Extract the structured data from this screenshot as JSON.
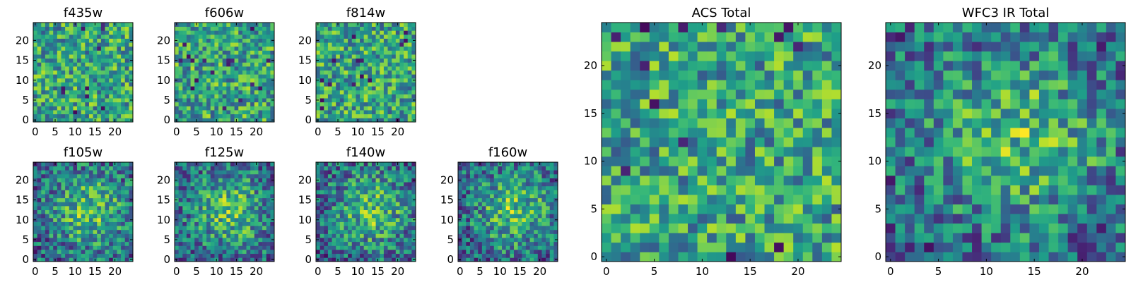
{
  "figure": {
    "colormap": "viridis",
    "colors": {
      "frame": "#000000",
      "background": "#ffffff"
    }
  },
  "chart_data": [
    {
      "type": "heatmap",
      "id": "f435w",
      "title": "f435w",
      "size": 25,
      "xlim": [
        -0.5,
        24.5
      ],
      "ylim": [
        -0.5,
        24.5
      ],
      "xticks": [
        0,
        5,
        10,
        15,
        20
      ],
      "yticks": [
        0,
        5,
        10,
        15,
        20
      ],
      "style": "uniform",
      "seed": 11,
      "grid": false
    },
    {
      "type": "heatmap",
      "id": "f606w",
      "title": "f606w",
      "size": 25,
      "xlim": [
        -0.5,
        24.5
      ],
      "ylim": [
        -0.5,
        24.5
      ],
      "xticks": [
        0,
        5,
        10,
        15,
        20
      ],
      "yticks": [
        0,
        5,
        10,
        15,
        20
      ],
      "style": "uniform",
      "seed": 23,
      "grid": false
    },
    {
      "type": "heatmap",
      "id": "f814w",
      "title": "f814w",
      "size": 25,
      "xlim": [
        -0.5,
        24.5
      ],
      "ylim": [
        -0.5,
        24.5
      ],
      "xticks": [
        0,
        5,
        10,
        15,
        20
      ],
      "yticks": [
        0,
        5,
        10,
        15,
        20
      ],
      "style": "uniform",
      "seed": 37,
      "grid": false
    },
    {
      "type": "heatmap",
      "id": "f105w",
      "title": "f105w",
      "size": 25,
      "xlim": [
        -0.5,
        24.5
      ],
      "ylim": [
        -0.5,
        24.5
      ],
      "xticks": [
        0,
        5,
        10,
        15,
        20
      ],
      "yticks": [
        0,
        5,
        10,
        15,
        20
      ],
      "style": "centered",
      "seed": 41,
      "grid": false
    },
    {
      "type": "heatmap",
      "id": "f125w",
      "title": "f125w",
      "size": 25,
      "xlim": [
        -0.5,
        24.5
      ],
      "ylim": [
        -0.5,
        24.5
      ],
      "xticks": [
        0,
        5,
        10,
        15,
        20
      ],
      "yticks": [
        0,
        5,
        10,
        15,
        20
      ],
      "style": "centered",
      "seed": 53,
      "grid": false
    },
    {
      "type": "heatmap",
      "id": "f140w",
      "title": "f140w",
      "size": 25,
      "xlim": [
        -0.5,
        24.5
      ],
      "ylim": [
        -0.5,
        24.5
      ],
      "xticks": [
        0,
        5,
        10,
        15,
        20
      ],
      "yticks": [
        0,
        5,
        10,
        15,
        20
      ],
      "style": "centered",
      "seed": 67,
      "grid": false
    },
    {
      "type": "heatmap",
      "id": "f160w",
      "title": "f160w",
      "size": 25,
      "xlim": [
        -0.5,
        24.5
      ],
      "ylim": [
        -0.5,
        24.5
      ],
      "xticks": [
        0,
        5,
        10,
        15,
        20
      ],
      "yticks": [
        0,
        5,
        10,
        15,
        20
      ],
      "style": "centered",
      "seed": 79,
      "grid": false
    },
    {
      "type": "heatmap",
      "id": "acs-total",
      "title": "ACS Total",
      "size": 25,
      "xlim": [
        -0.5,
        24.5
      ],
      "ylim": [
        -0.5,
        24.5
      ],
      "xticks": [
        0,
        5,
        10,
        15,
        20
      ],
      "yticks": [
        0,
        5,
        10,
        15,
        20
      ],
      "style": "uniform",
      "seed": 97,
      "grid": false
    },
    {
      "type": "heatmap",
      "id": "wfc3-ir-total",
      "title": "WFC3 IR Total",
      "size": 25,
      "xlim": [
        -0.5,
        24.5
      ],
      "ylim": [
        -0.5,
        24.5
      ],
      "xticks": [
        0,
        5,
        10,
        15,
        20
      ],
      "yticks": [
        0,
        5,
        10,
        15,
        20
      ],
      "style": "centered",
      "seed": 131,
      "grid": false
    }
  ]
}
